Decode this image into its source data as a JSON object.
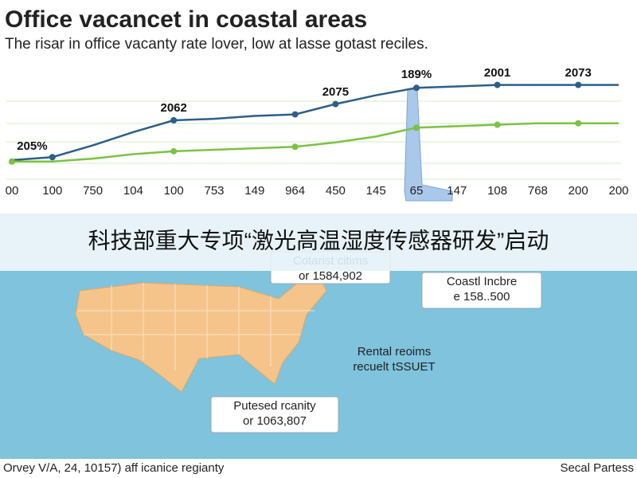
{
  "header": {
    "title": "Office vacancet in coastal areas",
    "subtitle": "The risar in office vacanty rate lover, low at lasse gotast reciles."
  },
  "chart_data": {
    "type": "line",
    "categories": [
      "00",
      "100",
      "750",
      "104",
      "100",
      "753",
      "149",
      "964",
      "450",
      "145",
      "65",
      "147",
      "108",
      "768",
      "200",
      "200"
    ],
    "series": [
      {
        "color": "#2c5f8a",
        "values": [
          13,
          15,
          23,
          32,
          40,
          41,
          43,
          44,
          51,
          57,
          62,
          63,
          64,
          64,
          64,
          64
        ]
      },
      {
        "color": "#7cc242",
        "values": [
          12,
          12,
          14,
          17,
          19,
          20,
          21,
          22,
          25,
          29,
          35,
          36,
          37,
          38,
          38,
          38
        ]
      }
    ],
    "annotations": [
      "205%",
      "2062",
      "2075",
      "189%",
      "2001",
      "2073"
    ],
    "ylim": [
      0,
      100
    ]
  },
  "banner": {
    "text": "科技部重大专项“激光高温湿度传感器研发”启动"
  },
  "map": {
    "callouts": [
      {
        "lines": [
          "Cotarist citims",
          "or 1584,902"
        ]
      },
      {
        "lines": [
          "Coastl Incbre",
          "e 158..500"
        ]
      },
      {
        "lines": [
          "Rental reoims",
          "recuelt tSSUET"
        ]
      },
      {
        "lines": [
          "Putesed rcanity",
          "or 1063,807"
        ]
      }
    ]
  },
  "footer": {
    "left": "Orvey V/A, 24, 10157) aff icanice regianty",
    "right": "Secal Partess"
  }
}
